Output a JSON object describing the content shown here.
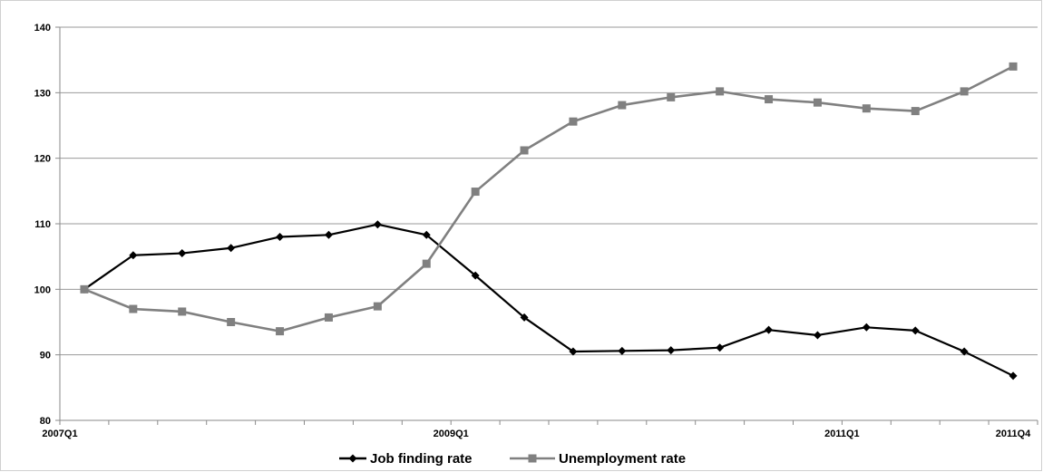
{
  "chart_data": {
    "type": "line",
    "title": "",
    "xlabel": "",
    "ylabel": "",
    "x": [
      "2007Q1",
      "2007Q2",
      "2007Q3",
      "2007Q4",
      "2008Q1",
      "2008Q2",
      "2008Q3",
      "2008Q4",
      "2009Q1",
      "2009Q2",
      "2009Q3",
      "2009Q4",
      "2010Q1",
      "2010Q2",
      "2010Q3",
      "2010Q4",
      "2011Q1",
      "2011Q2",
      "2011Q3",
      "2011Q4"
    ],
    "x_tick_labels": [
      {
        "index": 0,
        "label": "2007Q1"
      },
      {
        "index": 8,
        "label": "2009Q1"
      },
      {
        "index": 16,
        "label": "2011Q1"
      },
      {
        "index": 19,
        "label": "2011Q4"
      }
    ],
    "ylim": [
      80,
      140
    ],
    "y_ticks": [
      80,
      90,
      100,
      110,
      120,
      130,
      140
    ],
    "grid": "horizontal",
    "legend_position": "bottom",
    "series": [
      {
        "name": "Job finding rate",
        "color": "#000000",
        "marker": "diamond",
        "values": [
          100.0,
          105.2,
          105.5,
          106.3,
          108.0,
          108.3,
          109.9,
          108.3,
          102.1,
          95.7,
          90.5,
          90.6,
          90.7,
          91.1,
          93.8,
          93.0,
          94.2,
          93.7,
          90.5,
          86.8
        ]
      },
      {
        "name": "Unemployment rate",
        "color": "#808080",
        "marker": "square",
        "values": [
          100.0,
          97.0,
          96.6,
          95.0,
          93.6,
          95.7,
          97.4,
          103.9,
          114.9,
          121.2,
          125.6,
          128.1,
          129.3,
          130.2,
          129.0,
          128.5,
          127.6,
          127.2,
          130.2,
          134.0
        ]
      }
    ]
  }
}
